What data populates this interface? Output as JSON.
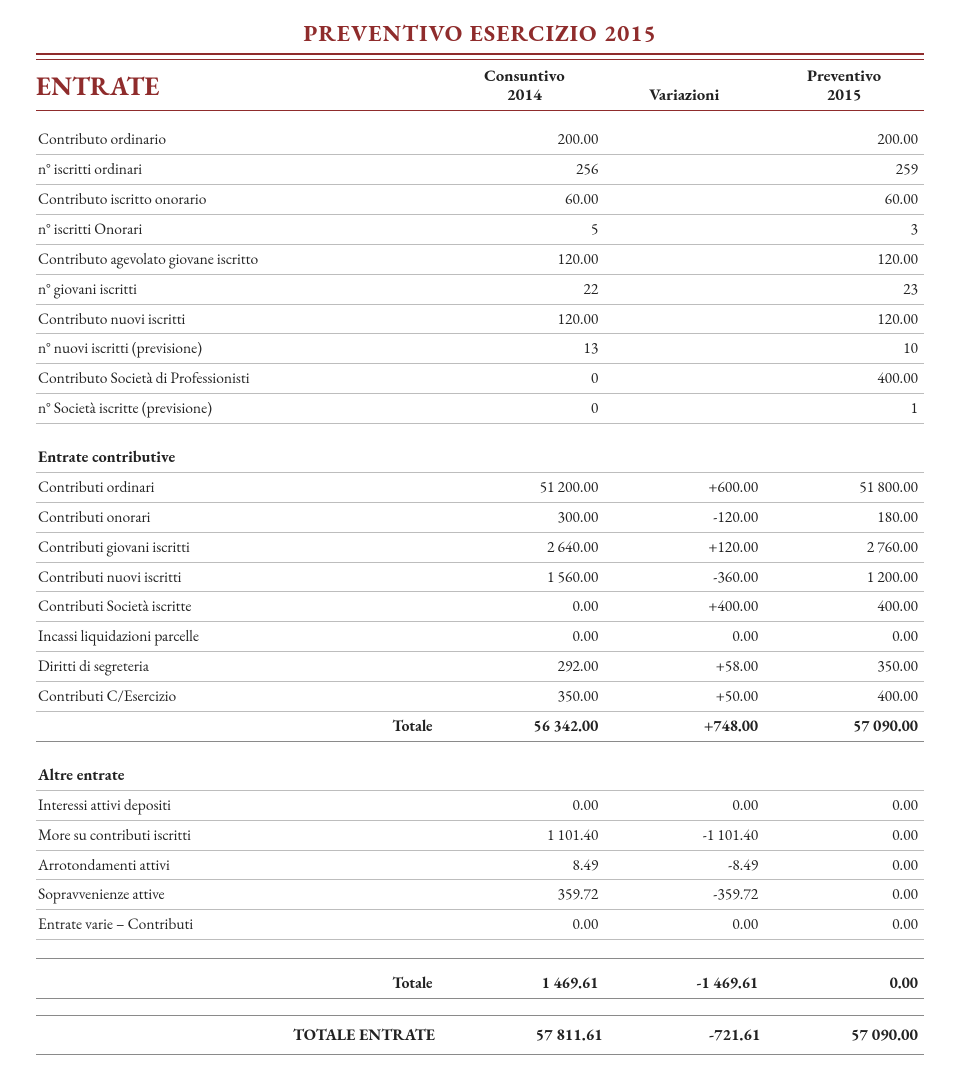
{
  "doc": {
    "title": "PREVENTIVO ESERCIZIO 2015",
    "section_title": "ENTRATE",
    "col_headers": {
      "c1_a": "Consuntivo",
      "c1_b": "2014",
      "c2": "Variazioni",
      "c3_a": "Preventivo",
      "c3_b": "2015"
    }
  },
  "style": {
    "maroon": "#8f2c2c",
    "rule": "#bdbdbd",
    "rule_dark": "#8a8a8a",
    "background": "#ffffff",
    "text": "#222222",
    "font_family": "serif (Garamond-like)",
    "body_fontsize_pt": 12,
    "title_fontsize_pt": 17
  },
  "blocks": [
    {
      "type": "params",
      "rule": "light",
      "rows": [
        {
          "label": "Contributo ordinario",
          "c1": "200.00",
          "c2": "",
          "c3": "200.00"
        },
        {
          "label": "n° iscritti ordinari",
          "c1": "256",
          "c2": "",
          "c3": "259"
        },
        {
          "label": "Contributo iscritto onorario",
          "c1": "60.00",
          "c2": "",
          "c3": "60.00"
        },
        {
          "label": "n° iscritti Onorari",
          "c1": "5",
          "c2": "",
          "c3": "3"
        },
        {
          "label": "Contributo agevolato giovane iscritto",
          "c1": "120.00",
          "c2": "",
          "c3": "120.00"
        },
        {
          "label": "n° giovani iscritti",
          "c1": "22",
          "c2": "",
          "c3": "23"
        },
        {
          "label": "Contributo nuovi iscritti",
          "c1": "120.00",
          "c2": "",
          "c3": "120.00"
        },
        {
          "label": "n° nuovi iscritti (previsione)",
          "c1": "13",
          "c2": "",
          "c3": "10"
        },
        {
          "label": "Contributo Società di Professionisti",
          "c1": "0",
          "c2": "",
          "c3": "400.00"
        },
        {
          "label": "n° Società iscritte (previsione)",
          "c1": "0",
          "c2": "",
          "c3": "1"
        }
      ]
    },
    {
      "type": "section",
      "title": "Entrate contributive",
      "rows": [
        {
          "label": "Contributi ordinari",
          "c1": "51 200.00",
          "c2": "+600.00",
          "c3": "51 800.00"
        },
        {
          "label": "Contributi onorari",
          "c1": "300.00",
          "c2": "-120.00",
          "c3": "180.00"
        },
        {
          "label": "Contributi giovani iscritti",
          "c1": "2 640.00",
          "c2": "+120.00",
          "c3": "2 760.00"
        },
        {
          "label": "Contributi nuovi iscritti",
          "c1": "1 560.00",
          "c2": "-360.00",
          "c3": "1 200.00"
        },
        {
          "label": "Contributi Società iscritte",
          "c1": "0.00",
          "c2": "+400.00",
          "c3": "400.00"
        },
        {
          "label": "Incassi liquidazioni parcelle",
          "c1": "0.00",
          "c2": "0.00",
          "c3": "0.00"
        },
        {
          "label": "Diritti di segreteria",
          "c1": "292.00",
          "c2": "+58.00",
          "c3": "350.00"
        },
        {
          "label": "Contributi C/Esercizio",
          "c1": "350.00",
          "c2": "+50.00",
          "c3": "400.00"
        }
      ],
      "total": {
        "label": "Totale",
        "c1": "56 342.00",
        "c2": "+748.00",
        "c3": "57 090.00"
      }
    },
    {
      "type": "section",
      "title": "Altre entrate",
      "rows": [
        {
          "label": "Interessi attivi depositi",
          "c1": "0.00",
          "c2": "0.00",
          "c3": "0.00"
        },
        {
          "label": "More su contributi iscritti",
          "c1": "1 101.40",
          "c2": "-1 101.40",
          "c3": "0.00"
        },
        {
          "label": "Arrotondamenti attivi",
          "c1": "8.49",
          "c2": "-8.49",
          "c3": "0.00"
        },
        {
          "label": "Sopravvenienze attive",
          "c1": "359.72",
          "c2": "-359.72",
          "c3": "0.00"
        },
        {
          "label": "Entrate varie – Contributi",
          "c1": "0.00",
          "c2": "0.00",
          "c3": "0.00"
        }
      ],
      "total": {
        "label": "Totale",
        "c1": "1 469.61",
        "c2": "-1 469.61",
        "c3": "0.00"
      },
      "total_boxed": true
    }
  ],
  "grand_total": {
    "label": "TOTALE ENTRATE",
    "c1": "57 811.61",
    "c2": "-721.61",
    "c3": "57 090.00"
  }
}
